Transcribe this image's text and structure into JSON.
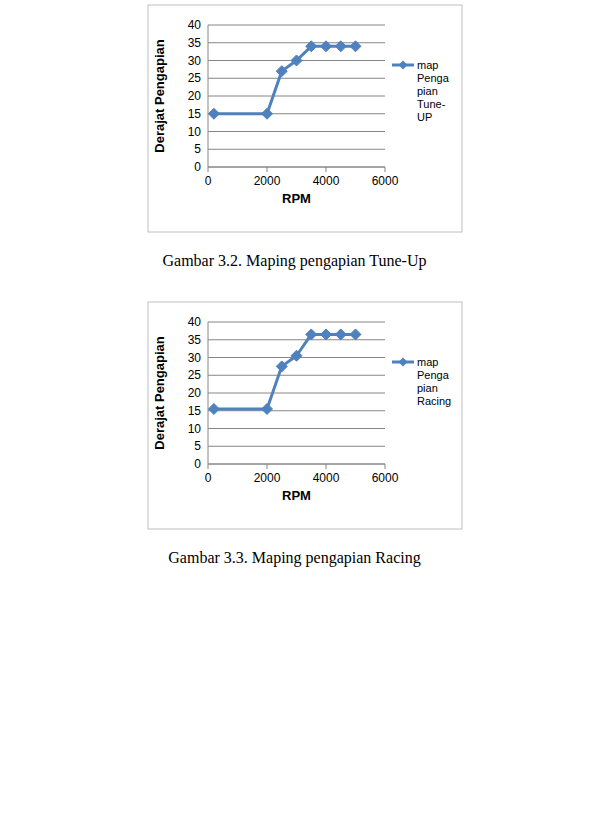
{
  "chart_data": [
    {
      "type": "line",
      "title": "Gambar 3.2. Maping pengapian Tune-Up",
      "x_label": "RPM",
      "y_label": "Derajat Pengapian",
      "x": [
        200,
        2000,
        2500,
        3000,
        3500,
        4000,
        4500,
        5000
      ],
      "series": [
        {
          "name": "map Pengapian Tune-UP",
          "color": "#4f81bd",
          "marker": "diamond",
          "values": [
            15,
            15,
            27,
            30,
            34,
            34,
            34,
            34
          ]
        }
      ],
      "xlim": [
        0,
        6000
      ],
      "xticks": [
        0,
        2000,
        4000,
        6000
      ],
      "ylim": [
        0,
        40
      ],
      "yticks": [
        0,
        5,
        10,
        15,
        20,
        25,
        30,
        35,
        40
      ],
      "grid": true,
      "legend": "right"
    },
    {
      "type": "line",
      "title": "Gambar 3.3. Maping pengapian Racing",
      "x_label": "RPM",
      "y_label": "Derajat Pengapian",
      "x": [
        200,
        2000,
        2500,
        3000,
        3500,
        4000,
        4500,
        5000
      ],
      "series": [
        {
          "name": "map Pengapian Racing",
          "color": "#4f81bd",
          "marker": "diamond",
          "values": [
            15.5,
            15.5,
            27.5,
            30.5,
            36.5,
            36.5,
            36.5,
            36.5
          ]
        }
      ],
      "xlim": [
        0,
        6000
      ],
      "xticks": [
        0,
        2000,
        4000,
        6000
      ],
      "ylim": [
        0,
        40
      ],
      "yticks": [
        0,
        5,
        10,
        15,
        20,
        25,
        30,
        35,
        40
      ],
      "grid": true,
      "legend": "right"
    }
  ]
}
